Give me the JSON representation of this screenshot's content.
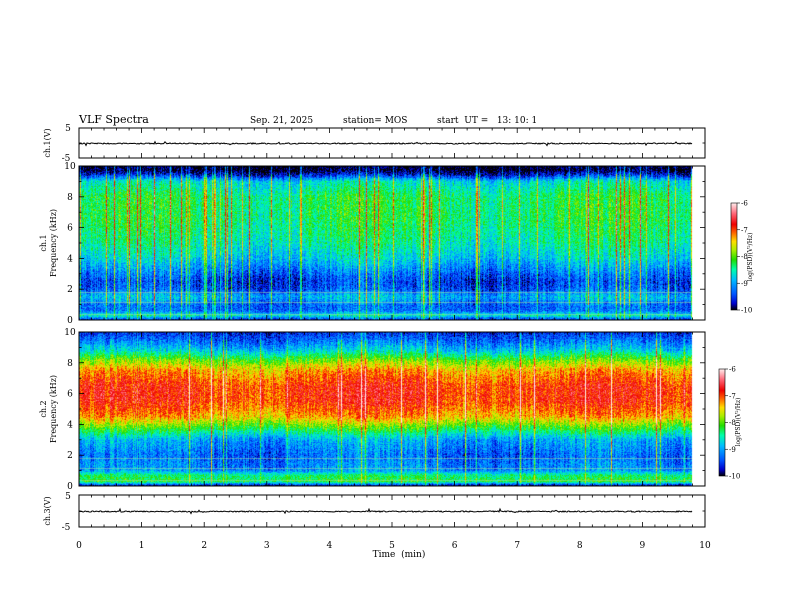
{
  "header": {
    "title": "VLF Spectra",
    "date": "Sep. 21, 2025",
    "station": "station= MOS",
    "start": "start  UT =   13: 10: 1"
  },
  "chart_data": [
    {
      "type": "line",
      "name": "ch1-waveform",
      "ylabel": "ch.1(V)",
      "ylim": [
        -5,
        5
      ],
      "ytick_labels": [
        "5",
        "-5"
      ],
      "x_unit": "min",
      "xlim": [
        0,
        10
      ],
      "trace_level": 0,
      "data_end_min": 9.8
    },
    {
      "type": "heatmap",
      "name": "ch1-spectrogram",
      "ylabel": "ch.1\nFrequency (kHz)",
      "ylim": [
        0,
        10
      ],
      "ytick_labels": [
        "0",
        "2",
        "4",
        "6",
        "8",
        "10"
      ],
      "xlim": [
        0,
        10
      ],
      "data_end_min": 9.8,
      "color_range": [
        -10,
        -6
      ],
      "colorbar_ticks": [
        "-6",
        "-7",
        "-8",
        "-9",
        "-10"
      ],
      "colorbar_label": "log(PSD)(V²/Hz)",
      "profile_khz": [
        [
          0.0,
          -9.6
        ],
        [
          0.3,
          -8.6
        ],
        [
          0.6,
          -9.3
        ],
        [
          1.0,
          -9.3
        ],
        [
          1.5,
          -8.9
        ],
        [
          2.0,
          -9.4
        ],
        [
          2.5,
          -9.5
        ],
        [
          3.0,
          -9.3
        ],
        [
          4.0,
          -8.8
        ],
        [
          5.0,
          -8.5
        ],
        [
          6.5,
          -8.3
        ],
        [
          8.0,
          -8.3
        ],
        [
          9.0,
          -8.7
        ],
        [
          9.4,
          -9.6
        ],
        [
          9.7,
          -10.0
        ],
        [
          10.0,
          -10.0
        ]
      ]
    },
    {
      "type": "heatmap",
      "name": "ch2-spectrogram",
      "ylabel": "ch.2\nFrequency (kHz)",
      "ylim": [
        0,
        10
      ],
      "ytick_labels": [
        "0",
        "2",
        "4",
        "6",
        "8",
        "10"
      ],
      "xlim": [
        0,
        10
      ],
      "data_end_min": 9.8,
      "color_range": [
        -10,
        -6
      ],
      "colorbar_ticks": [
        "-6",
        "-7",
        "-8",
        "-9",
        "-10"
      ],
      "colorbar_label": "log(PSD)(V²/Hz)",
      "profile_khz": [
        [
          0.0,
          -9.9
        ],
        [
          0.3,
          -8.2
        ],
        [
          0.7,
          -8.4
        ],
        [
          1.0,
          -9.1
        ],
        [
          2.0,
          -9.3
        ],
        [
          3.0,
          -9.0
        ],
        [
          3.8,
          -8.1
        ],
        [
          4.5,
          -7.3
        ],
        [
          5.5,
          -6.9
        ],
        [
          6.5,
          -6.9
        ],
        [
          7.5,
          -7.3
        ],
        [
          8.2,
          -8.0
        ],
        [
          8.8,
          -8.8
        ],
        [
          9.3,
          -9.2
        ],
        [
          10.0,
          -9.6
        ]
      ]
    },
    {
      "type": "line",
      "name": "ch3-waveform",
      "ylabel": "ch.3(V)",
      "ylim": [
        -5,
        5
      ],
      "ytick_labels": [
        "5",
        "-5"
      ],
      "xlim": [
        0,
        10
      ],
      "trace_level": 0,
      "data_end_min": 9.8
    }
  ],
  "xaxis": {
    "label": "Time  (min)",
    "ticks": [
      "0",
      "1",
      "2",
      "3",
      "4",
      "5",
      "6",
      "7",
      "8",
      "9",
      "10"
    ]
  },
  "colorbar_colors": [
    "#000000",
    "#0000cc",
    "#0055ff",
    "#00bbff",
    "#00ffaa",
    "#22dd00",
    "#aaee00",
    "#ffdd00",
    "#ff6600",
    "#ee0000",
    "#ff6677",
    "#ffeeee"
  ]
}
